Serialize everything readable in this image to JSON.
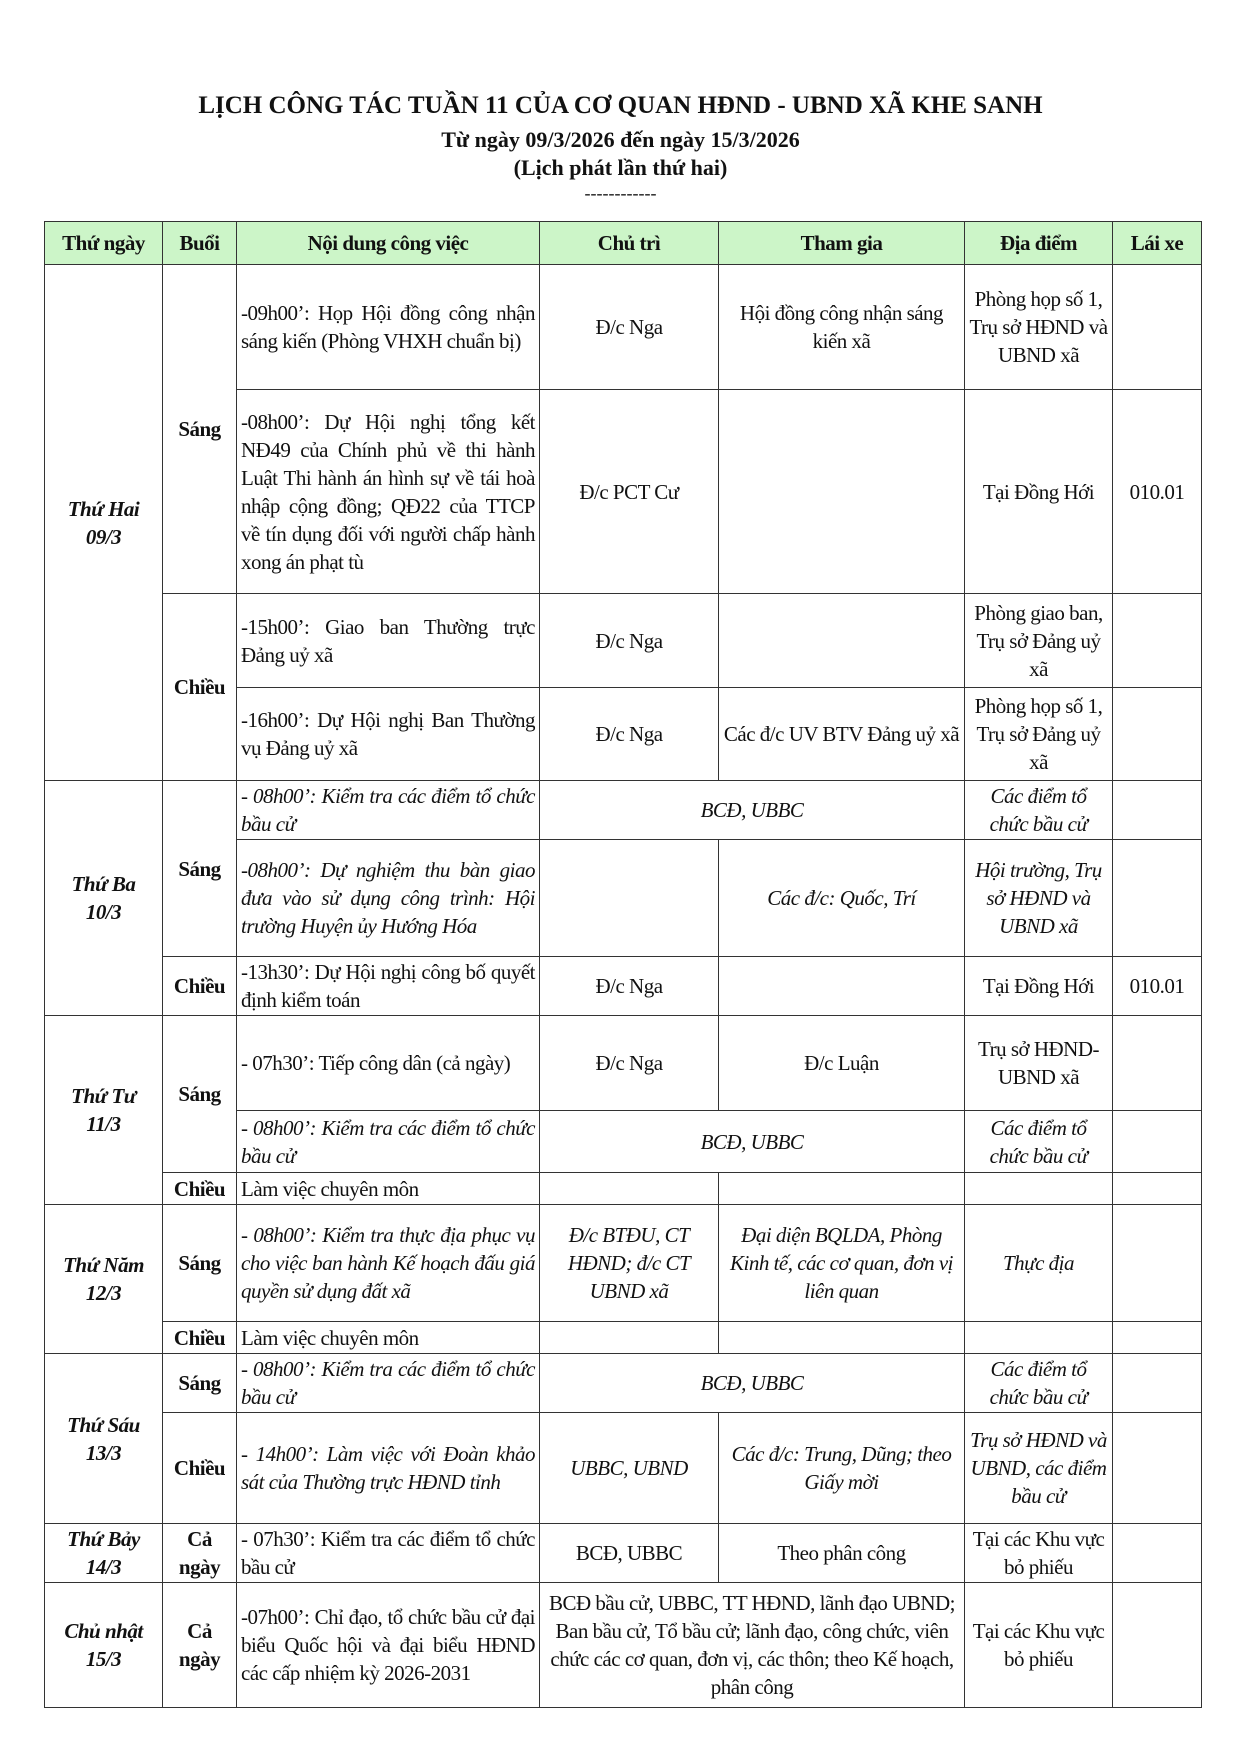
{
  "header": {
    "title": "LỊCH CÔNG TÁC TUẦN 11 CỦA CƠ QUAN HĐND - UBND XÃ KHE SANH",
    "date_range": "Từ ngày 09/3/2026 đến ngày 15/3/2026",
    "edition": "(Lịch phát lần thứ hai)",
    "separator": "------------"
  },
  "table": {
    "columns": [
      "Thứ ngày",
      "Buổi",
      "Nội dung công việc",
      "Chủ trì",
      "Tham gia",
      "Địa điểm",
      "Lái xe"
    ],
    "days": [
      {
        "day": "Thứ Hai",
        "date": "09/3",
        "sessions": [
          {
            "name": "Sáng",
            "items": [
              {
                "content": "-09h00’: Họp Hội đồng công nhận sáng kiến (Phòng VHXH chuẩn bị)",
                "chu_tri": "Đ/c Nga",
                "tham_gia": "Hội đồng công nhận sáng kiến xã",
                "dia_diem": "Phòng họp số 1, Trụ sở HĐND và UBND xã",
                "lai_xe": ""
              },
              {
                "content": "-08h00’: Dự Hội nghị tổng kết NĐ49 của Chính phủ về thi hành Luật Thi hành án hình sự về tái hoà nhập cộng đồng; QĐ22 của TTCP về tín dụng đối với người chấp hành xong án phạt tù",
                "chu_tri": "Đ/c PCT Cư",
                "tham_gia": "",
                "dia_diem": "Tại Đồng Hới",
                "lai_xe": "010.01"
              }
            ]
          },
          {
            "name": "Chiều",
            "items": [
              {
                "content": "-15h00’: Giao ban Thường trực Đảng uỷ xã",
                "chu_tri": "Đ/c Nga",
                "tham_gia": "",
                "dia_diem": "Phòng giao ban, Trụ sở Đảng uỷ xã",
                "lai_xe": ""
              },
              {
                "content": "-16h00’: Dự Hội nghị Ban Thường vụ Đảng uỷ xã",
                "chu_tri": "Đ/c Nga",
                "tham_gia": "Các đ/c UV BTV Đảng uỷ xã",
                "dia_diem": "Phòng họp số 1, Trụ sở Đảng uỷ xã",
                "lai_xe": ""
              }
            ]
          }
        ]
      },
      {
        "day": "Thứ Ba",
        "date": "10/3",
        "sessions": [
          {
            "name": "Sáng",
            "items": [
              {
                "content": "- 08h00’: Kiểm tra các điểm tổ chức bầu cử",
                "italic": true,
                "merged": "BCĐ, UBBC",
                "dia_diem": "Các điểm tổ chức bầu cử",
                "lai_xe": ""
              },
              {
                "content": "-08h00’: Dự nghiệm thu bàn giao đưa vào sử dụng công trình: Hội trường Huyện ủy Hướng Hóa",
                "italic": true,
                "chu_tri": "",
                "tham_gia": "Các đ/c: Quốc, Trí",
                "dia_diem": "Hội trường, Trụ sở HĐND và UBND xã",
                "lai_xe": ""
              }
            ]
          },
          {
            "name": "Chiều",
            "items": [
              {
                "content": "-13h30’: Dự Hội nghị công bố quyết định kiểm toán",
                "chu_tri": "Đ/c Nga",
                "tham_gia": "",
                "dia_diem": "Tại Đồng Hới",
                "lai_xe": "010.01"
              }
            ]
          }
        ]
      },
      {
        "day": "Thứ Tư",
        "date": "11/3",
        "sessions": [
          {
            "name": "Sáng",
            "items": [
              {
                "content": "- 07h30’: Tiếp công dân (cả ngày)",
                "chu_tri": "Đ/c Nga",
                "tham_gia": "Đ/c Luận",
                "dia_diem": "Trụ sở HĐND-UBND xã",
                "lai_xe": ""
              },
              {
                "content": "- 08h00’: Kiểm tra các điểm tổ chức bầu cử",
                "italic": true,
                "merged": "BCĐ, UBBC",
                "dia_diem": "Các điểm tổ chức bầu cử",
                "lai_xe": ""
              }
            ]
          },
          {
            "name": "Chiều",
            "items": [
              {
                "content": "Làm việc chuyên môn",
                "chu_tri": "",
                "tham_gia": "",
                "dia_diem": "",
                "lai_xe": ""
              }
            ]
          }
        ]
      },
      {
        "day": "Thứ Năm",
        "date": "12/3",
        "sessions": [
          {
            "name": "Sáng",
            "items": [
              {
                "content": "- 08h00’: Kiểm tra thực địa phục vụ cho việc ban hành Kế hoạch đấu giá quyền sử dụng đất xã",
                "italic": true,
                "chu_tri": "Đ/c BTĐU, CT HĐND; đ/c CT UBND xã",
                "tham_gia": "Đại diện BQLDA, Phòng Kinh tế, các cơ quan, đơn vị liên quan",
                "dia_diem": "Thực địa",
                "lai_xe": ""
              }
            ]
          },
          {
            "name": "Chiều",
            "items": [
              {
                "content": "Làm việc chuyên môn",
                "chu_tri": "",
                "tham_gia": "",
                "dia_diem": "",
                "lai_xe": ""
              }
            ]
          }
        ]
      },
      {
        "day": "Thứ Sáu",
        "date": "13/3",
        "sessions": [
          {
            "name": "Sáng",
            "items": [
              {
                "content": "- 08h00’: Kiểm tra các điểm tổ chức bầu cử",
                "italic": true,
                "merged": "BCĐ, UBBC",
                "dia_diem": "Các điểm tổ chức bầu cử",
                "lai_xe": ""
              }
            ]
          },
          {
            "name": "Chiều",
            "items": [
              {
                "content": "- 14h00’: Làm việc với Đoàn khảo sát của Thường trực HĐND tỉnh",
                "italic": true,
                "chu_tri": "UBBC, UBND",
                "tham_gia": "Các đ/c: Trung, Dũng; theo Giấy mời",
                "dia_diem": "Trụ sở HĐND và UBND, các điểm bầu cử",
                "lai_xe": ""
              }
            ]
          }
        ]
      },
      {
        "day": "Thứ Bảy",
        "date": "14/3",
        "sessions": [
          {
            "name": "Cả ngày",
            "items": [
              {
                "content": "- 07h30’: Kiểm tra các điểm tổ chức bầu cử",
                "chu_tri": "BCĐ, UBBC",
                "tham_gia": "Theo phân công",
                "dia_diem": "Tại các Khu vực bỏ phiếu",
                "lai_xe": ""
              }
            ]
          }
        ]
      },
      {
        "day": "Chủ nhật",
        "date": "15/3",
        "sessions": [
          {
            "name": "Cả ngày",
            "items": [
              {
                "content": "-07h00’: Chỉ đạo, tổ chức bầu cử đại biểu Quốc hội và đại biểu HĐND các cấp nhiệm kỳ 2026-2031",
                "merged": "BCĐ bầu cử, UBBC, TT HĐND, lãnh đạo UBND; Ban bầu cử, Tổ bầu cử; lãnh đạo, công chức, viên chức các cơ quan, đơn vị, các thôn; theo Kế hoạch, phân công",
                "dia_diem": "Tại các Khu vực bỏ phiếu",
                "lai_xe": ""
              }
            ]
          }
        ]
      }
    ]
  }
}
